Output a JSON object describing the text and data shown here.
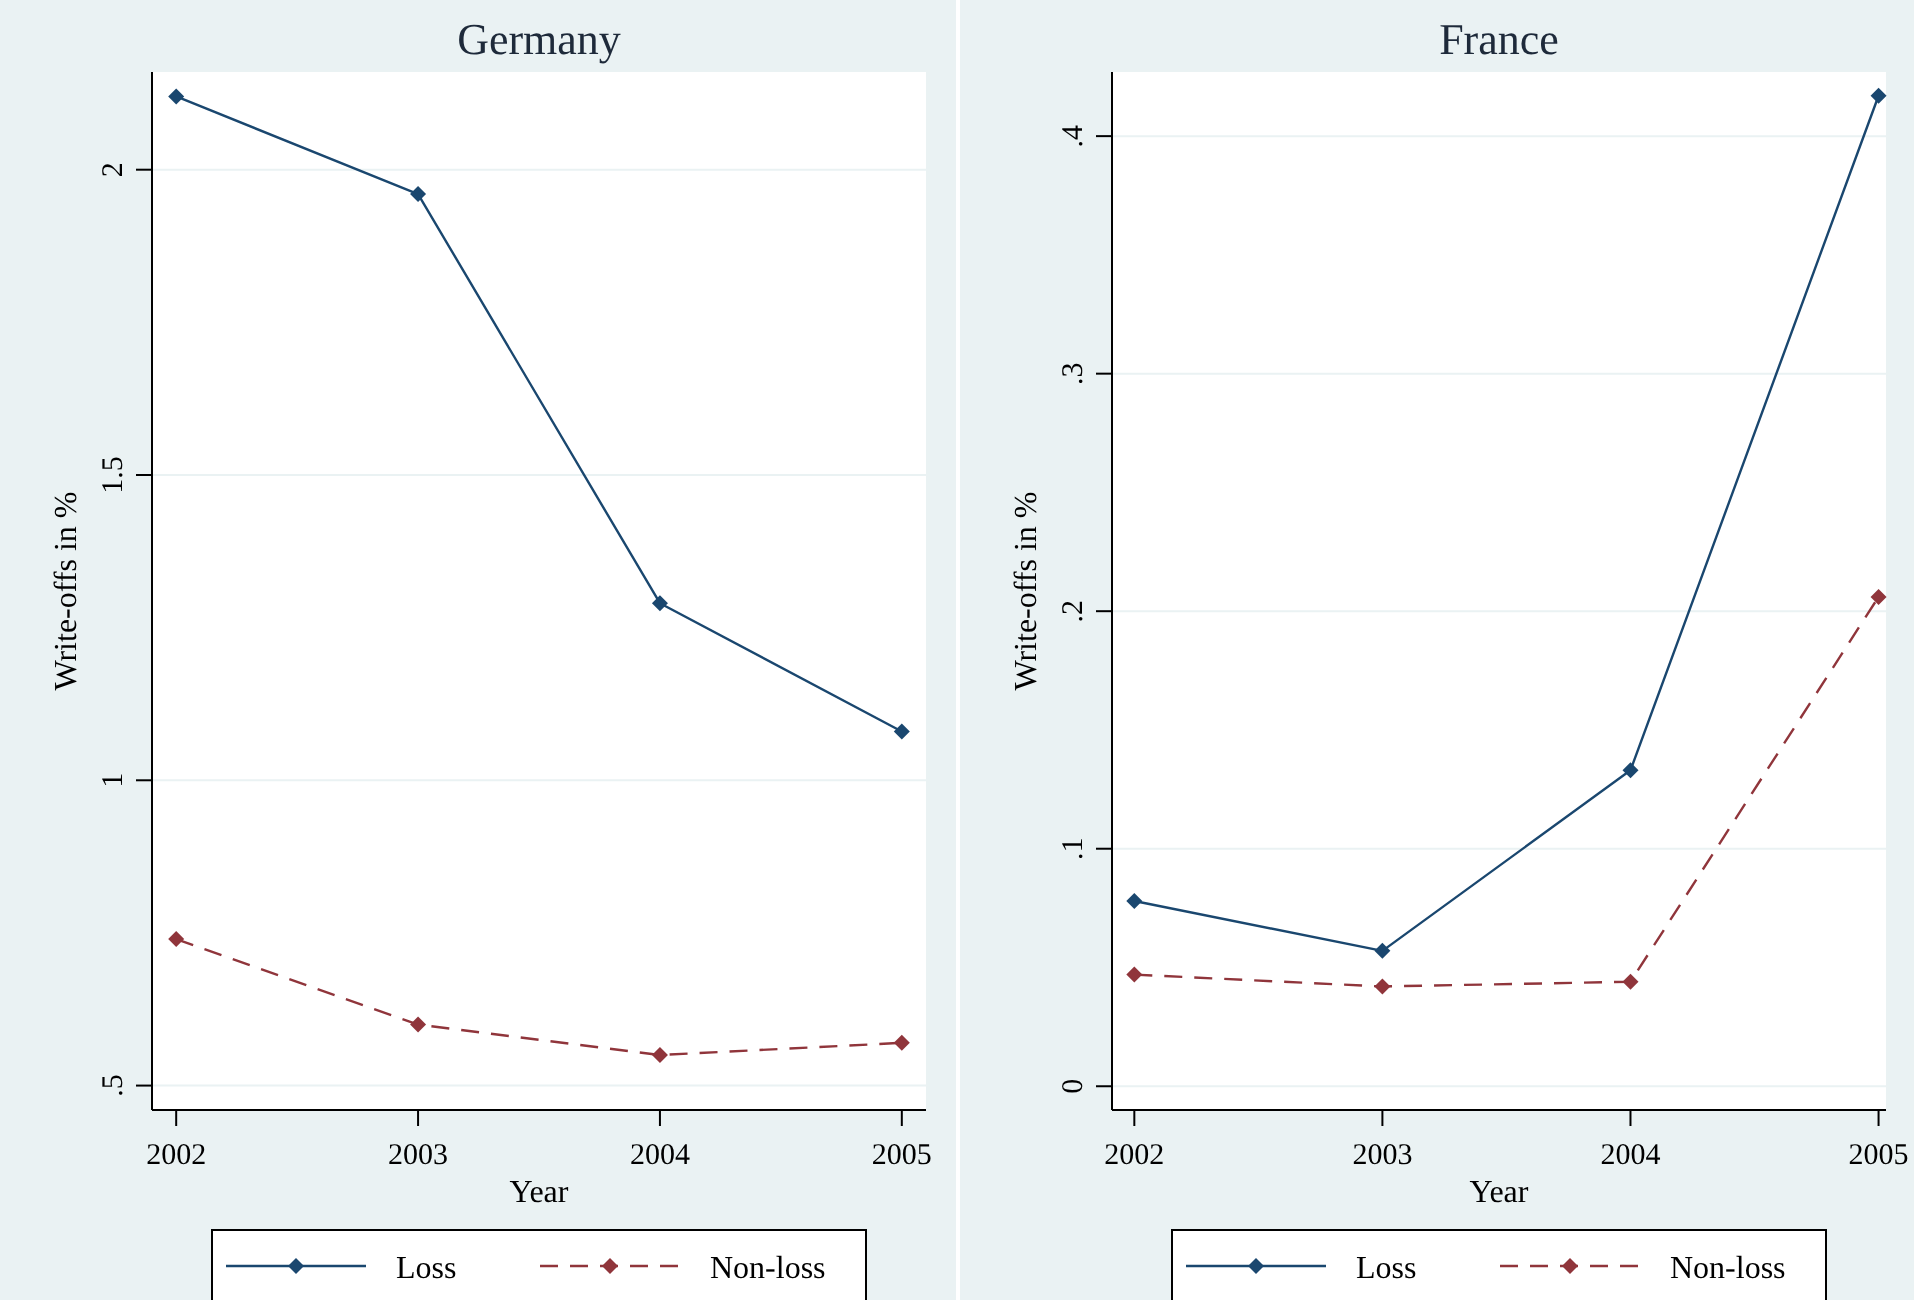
{
  "chart_data": [
    {
      "type": "line",
      "title": "Germany",
      "xlabel": "Year",
      "ylabel": "Write-offs in %",
      "x": [
        2002,
        2003,
        2004,
        2005
      ],
      "xlim": [
        2001.9,
        2005.1
      ],
      "xticks": [
        2002,
        2003,
        2004,
        2005
      ],
      "ylim": [
        0.46,
        2.16
      ],
      "yticks": [
        {
          "value": 0.5,
          "label": ".5"
        },
        1,
        1.5,
        2
      ],
      "grid": "y",
      "legend": "bottom",
      "marker": "diamond",
      "series": [
        {
          "name": "Loss",
          "color": "#1a476f",
          "line_style": "solid",
          "values": [
            2.12,
            1.96,
            1.29,
            1.08
          ]
        },
        {
          "name": "Non-loss",
          "color": "#90353b",
          "line_style": "dashed",
          "values": [
            0.74,
            0.6,
            0.55,
            0.57
          ]
        }
      ]
    },
    {
      "type": "line",
      "title": "France",
      "xlabel": "Year",
      "ylabel": "Write-offs in %",
      "x": [
        2002,
        2003,
        2004,
        2005
      ],
      "xlim": [
        2001.91,
        2005.03
      ],
      "xticks": [
        2002,
        2003,
        2004,
        2005
      ],
      "ylim": [
        -0.01,
        0.427
      ],
      "yticks": [
        0,
        {
          "value": 0.1,
          "label": ".1"
        },
        {
          "value": 0.2,
          "label": ".2"
        },
        {
          "value": 0.3,
          "label": ".3"
        },
        {
          "value": 0.4,
          "label": ".4"
        }
      ],
      "grid": "y",
      "legend": "bottom",
      "marker": "diamond",
      "series": [
        {
          "name": "Loss",
          "color": "#1a476f",
          "line_style": "solid",
          "values": [
            0.078,
            0.057,
            0.133,
            0.417
          ]
        },
        {
          "name": "Non-loss",
          "color": "#90353b",
          "line_style": "dashed",
          "values": [
            0.047,
            0.042,
            0.044,
            0.206
          ]
        }
      ]
    }
  ]
}
